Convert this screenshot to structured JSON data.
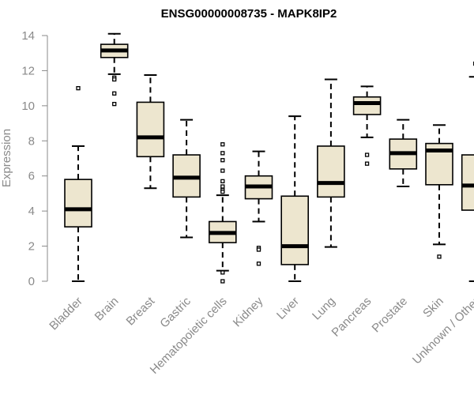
{
  "chart_data": {
    "type": "boxplot",
    "title": "ENSG00000008735 - MAPK8IP2",
    "xlabel": "",
    "ylabel": "Expression",
    "ylim": [
      0,
      14
    ],
    "yticks": [
      "0",
      "2",
      "4",
      "6",
      "8",
      "10",
      "12",
      "14"
    ],
    "colors": {
      "box_fill": "#ede6cf",
      "line": "#000000",
      "axis": "#8a8a8a"
    },
    "categories": [
      "Bladder",
      "Brain",
      "Breast",
      "Gastric",
      "Hematopoietic cells",
      "Kidney",
      "Liver",
      "Lung",
      "Pancreas",
      "Prostate",
      "Skin",
      "Unknown / Other"
    ],
    "boxes": [
      {
        "name": "Bladder",
        "whisker_low": 0.0,
        "q1": 3.1,
        "median": 4.1,
        "q3": 5.8,
        "whisker_high": 7.7,
        "outliers": [
          11.0
        ]
      },
      {
        "name": "Brain",
        "whisker_low": 11.8,
        "q1": 12.75,
        "median": 13.15,
        "q3": 13.5,
        "whisker_high": 14.1,
        "outliers": [
          11.6,
          11.5,
          10.7,
          10.1
        ]
      },
      {
        "name": "Breast",
        "whisker_low": 5.3,
        "q1": 7.1,
        "median": 8.2,
        "q3": 10.2,
        "whisker_high": 11.75,
        "outliers": []
      },
      {
        "name": "Gastric",
        "whisker_low": 2.5,
        "q1": 4.8,
        "median": 5.9,
        "q3": 7.2,
        "whisker_high": 9.2,
        "outliers": []
      },
      {
        "name": "Hematopoietic cells",
        "whisker_low": 0.6,
        "q1": 2.2,
        "median": 2.75,
        "q3": 3.4,
        "whisker_high": 4.9,
        "outliers": [
          7.8,
          7.3,
          6.9,
          6.3,
          5.7,
          5.4,
          5.2,
          5.1,
          0.5,
          0.0
        ]
      },
      {
        "name": "Kidney",
        "whisker_low": 3.4,
        "q1": 4.7,
        "median": 5.4,
        "q3": 6.0,
        "whisker_high": 7.4,
        "outliers": [
          1.9,
          1.8,
          1.0
        ]
      },
      {
        "name": "Liver",
        "whisker_low": 0.0,
        "q1": 0.95,
        "median": 2.0,
        "q3": 4.85,
        "whisker_high": 9.4,
        "outliers": []
      },
      {
        "name": "Lung",
        "whisker_low": 1.95,
        "q1": 4.8,
        "median": 5.6,
        "q3": 7.7,
        "whisker_high": 11.5,
        "outliers": []
      },
      {
        "name": "Pancreas",
        "whisker_low": 8.2,
        "q1": 9.5,
        "median": 10.15,
        "q3": 10.5,
        "whisker_high": 11.1,
        "outliers": [
          7.2,
          6.7
        ]
      },
      {
        "name": "Prostate",
        "whisker_low": 5.4,
        "q1": 6.4,
        "median": 7.3,
        "q3": 8.1,
        "whisker_high": 9.2,
        "outliers": []
      },
      {
        "name": "Skin",
        "whisker_low": 2.1,
        "q1": 5.5,
        "median": 7.45,
        "q3": 7.85,
        "whisker_high": 8.9,
        "outliers": [
          1.4
        ]
      },
      {
        "name": "Unknown / Other",
        "whisker_low": 0.0,
        "q1": 4.05,
        "median": 5.45,
        "q3": 7.2,
        "whisker_high": 11.65,
        "outliers": [
          12.4
        ]
      }
    ]
  }
}
